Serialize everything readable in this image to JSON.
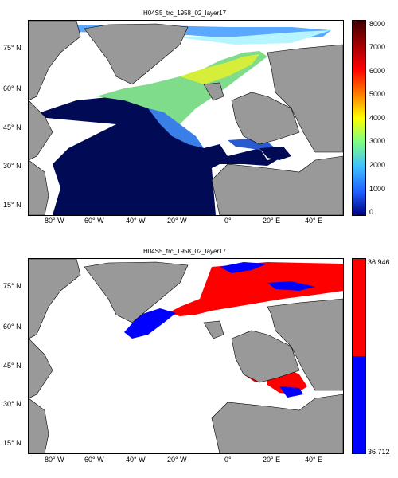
{
  "top": {
    "title": "H04S5_trc_1958_02_layer17",
    "yticks": [
      "75° N",
      "60° N",
      "45° N",
      "30° N",
      "15° N"
    ],
    "xticks": [
      "80° W",
      "60° W",
      "40° W",
      "20° W",
      "0°",
      "20° E",
      "40° E"
    ],
    "colorbar": {
      "labels": [
        "8000",
        "7000",
        "6000",
        "5000",
        "4000",
        "3000",
        "2000",
        "1000",
        "0"
      ],
      "colors": [
        "#000080",
        "#2060ff",
        "#40c0ff",
        "#80ff80",
        "#ffff00",
        "#ff8000",
        "#ff0000",
        "#800000",
        "#400000"
      ]
    }
  },
  "bottom": {
    "title": "H04S5_trc_1958_02_layer17",
    "yticks": [
      "75° N",
      "60° N",
      "45° N",
      "30° N",
      "15° N"
    ],
    "xticks": [
      "80° W",
      "60° W",
      "40° W",
      "20° W",
      "0°",
      "20° E",
      "40° E"
    ],
    "colorbar": {
      "labels": [
        "36.946",
        "36.712"
      ],
      "colors": [
        "#ff0000",
        "#0000ff"
      ]
    }
  },
  "land_color": "#999999"
}
